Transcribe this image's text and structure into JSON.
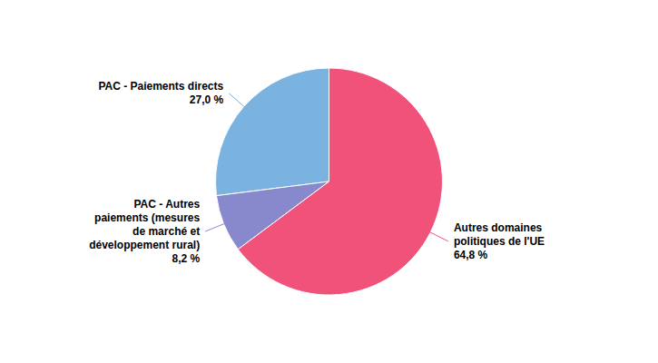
{
  "chart_data": {
    "type": "pie",
    "categories": [
      "PAC - Paiements directs",
      "PAC - Autres\npaiements (mesures\nde marché et\ndéveloppement rural)",
      "Autres domaines\npolitiques de l'UE"
    ],
    "values": [
      27.0,
      8.2,
      64.8
    ],
    "value_labels": [
      "27,0 %",
      "8,2 %",
      "64,8 %"
    ],
    "colors": [
      "#7ab3e0",
      "#8888cc",
      "#f0527a"
    ],
    "data_labels": true
  }
}
